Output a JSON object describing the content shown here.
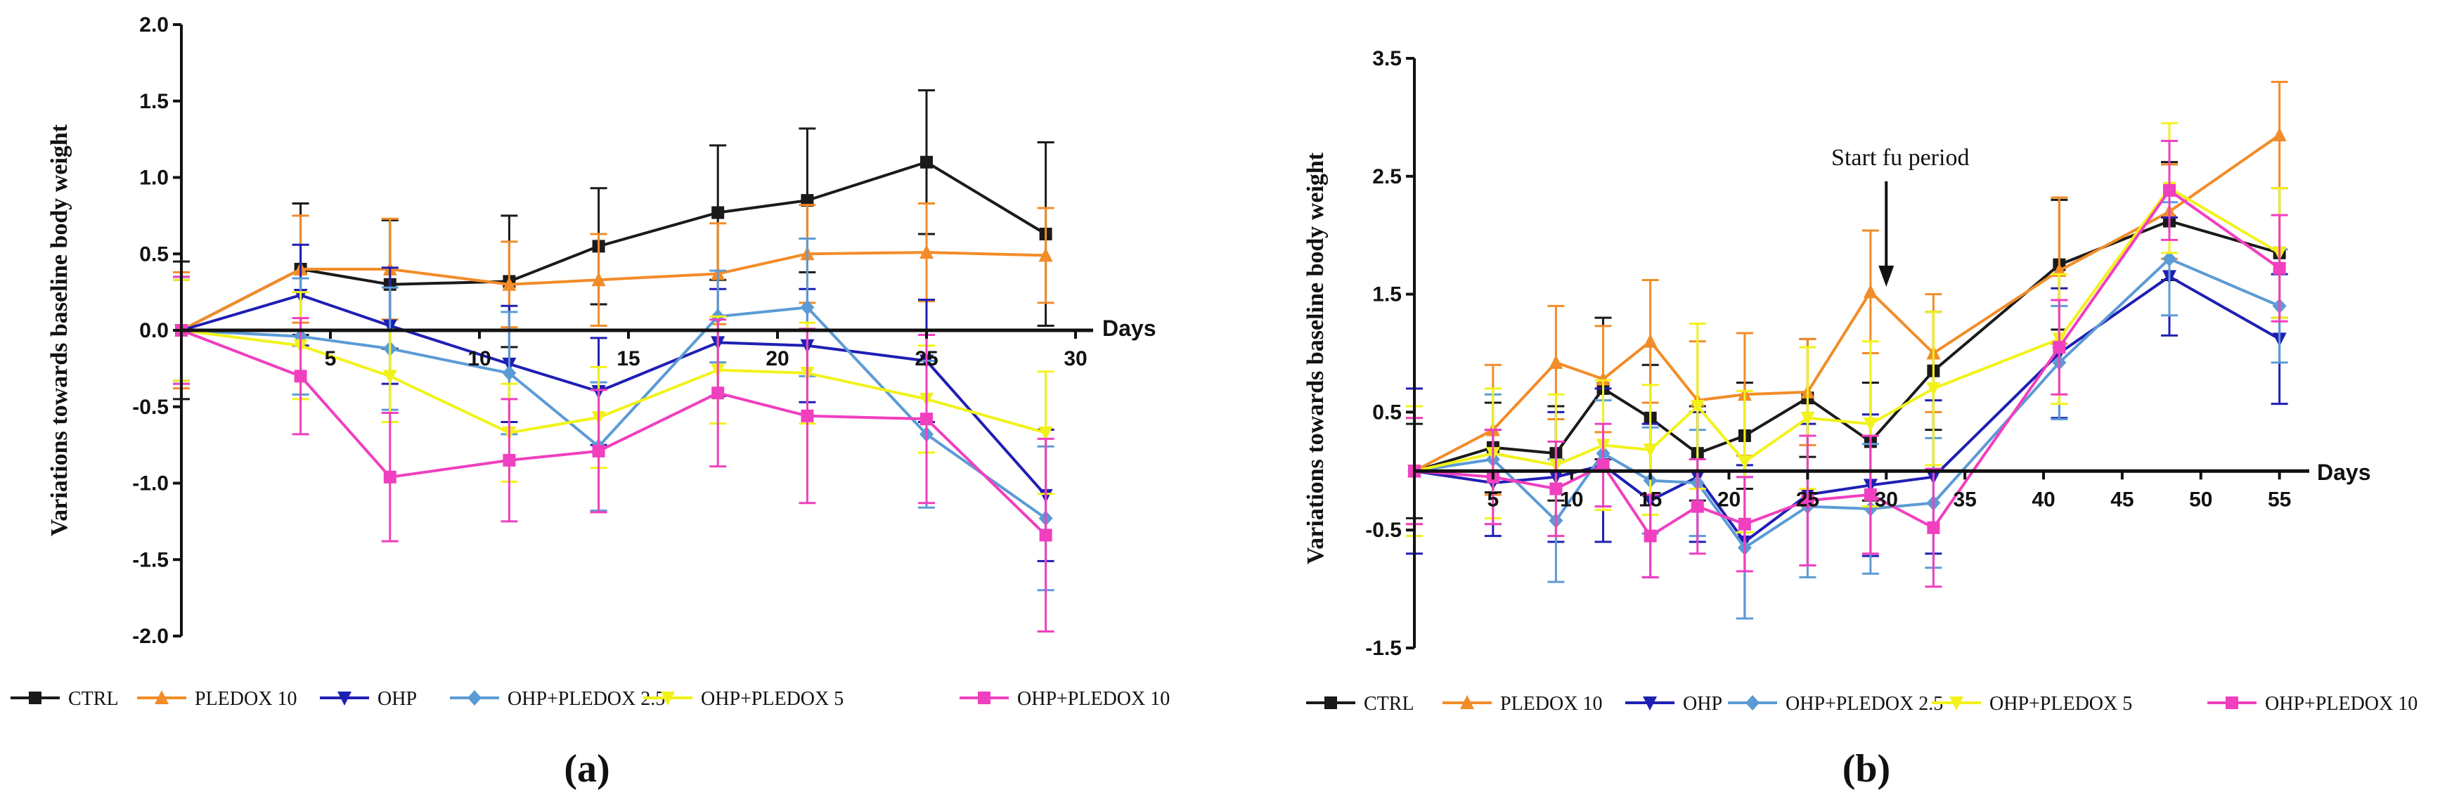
{
  "chart_data": [
    {
      "type": "line",
      "panel_label": "(a)",
      "ylabel": "Variations towards baseline body weight",
      "xlabel": "Days",
      "ylim": [
        -2.0,
        2.0
      ],
      "xlim": [
        0,
        30
      ],
      "yticks": [
        "2.0",
        "1.5",
        "1.0",
        "0.5",
        "0.0",
        "-0.5",
        "-1.0",
        "-1.5",
        "-2.0"
      ],
      "ytick_values": [
        2.0,
        1.5,
        1.0,
        0.5,
        0.0,
        -0.5,
        -1.0,
        -1.5,
        -2.0
      ],
      "xticks": [
        "5",
        "10",
        "15",
        "20",
        "25",
        "30"
      ],
      "xtick_values": [
        5,
        10,
        15,
        20,
        25,
        30
      ],
      "series": [
        {
          "name": "CTRL",
          "color": "#1a1a1a",
          "marker": "square",
          "x": [
            0,
            4,
            7,
            11,
            14,
            18,
            21,
            25,
            29
          ],
          "y": [
            0,
            0.4,
            0.3,
            0.32,
            0.55,
            0.77,
            0.85,
            1.1,
            0.63
          ],
          "err": [
            0.45,
            0.43,
            0.42,
            0.43,
            0.38,
            0.44,
            0.47,
            0.47,
            0.6
          ]
        },
        {
          "name": "PLEDOX 10",
          "color": "#f28c28",
          "marker": "triangle-up",
          "x": [
            0,
            4,
            7,
            11,
            14,
            18,
            21,
            25,
            29
          ],
          "y": [
            0,
            0.4,
            0.4,
            0.3,
            0.33,
            0.37,
            0.5,
            0.51,
            0.49
          ],
          "err": [
            0.38,
            0.35,
            0.33,
            0.28,
            0.3,
            0.33,
            0.32,
            0.32,
            0.31
          ]
        },
        {
          "name": "OHP",
          "color": "#1f1fb4",
          "marker": "triangle-down",
          "x": [
            0,
            4,
            7,
            11,
            14,
            18,
            21,
            25,
            29
          ],
          "y": [
            0,
            0.23,
            0.03,
            -0.22,
            -0.4,
            -0.08,
            -0.1,
            -0.2,
            -1.08
          ],
          "err": [
            0.33,
            0.33,
            0.38,
            0.38,
            0.35,
            0.35,
            0.37,
            0.4,
            0.43
          ]
        },
        {
          "name": "OHP+PLEDOX 2.5",
          "color": "#5b9bd5",
          "marker": "diamond",
          "x": [
            0,
            4,
            7,
            11,
            14,
            18,
            21,
            25,
            29
          ],
          "y": [
            0,
            -0.04,
            -0.12,
            -0.28,
            -0.76,
            0.09,
            0.15,
            -0.68,
            -1.23
          ],
          "err": [
            0.35,
            0.38,
            0.4,
            0.4,
            0.42,
            0.3,
            0.45,
            0.48,
            0.47
          ]
        },
        {
          "name": "OHP+PLEDOX 5",
          "color": "#f2f21a",
          "marker": "triangle-down",
          "x": [
            0,
            4,
            7,
            11,
            14,
            18,
            21,
            25,
            29
          ],
          "y": [
            0,
            -0.1,
            -0.3,
            -0.67,
            -0.57,
            -0.26,
            -0.28,
            -0.45,
            -0.67
          ],
          "err": [
            0.33,
            0.35,
            0.3,
            0.32,
            0.33,
            0.35,
            0.33,
            0.35,
            0.4
          ]
        },
        {
          "name": "OHP+PLEDOX 10",
          "color": "#f03fbf",
          "marker": "square",
          "x": [
            0,
            4,
            7,
            11,
            14,
            18,
            21,
            25,
            29
          ],
          "y": [
            0,
            -0.3,
            -0.96,
            -0.85,
            -0.79,
            -0.41,
            -0.56,
            -0.58,
            -1.34
          ],
          "err": [
            0.35,
            0.38,
            0.42,
            0.4,
            0.4,
            0.48,
            0.57,
            0.55,
            0.63
          ]
        }
      ]
    },
    {
      "type": "line",
      "panel_label": "(b)",
      "ylabel": "Variations towards baseline body weight",
      "xlabel": "Days",
      "ylim": [
        -1.5,
        3.5
      ],
      "xlim": [
        0,
        56
      ],
      "yticks": [
        "3.5",
        "2.5",
        "1.5",
        "0.5",
        "-0.5",
        "-1.5"
      ],
      "ytick_values": [
        3.5,
        2.5,
        1.5,
        0.5,
        -0.5,
        -1.5
      ],
      "xticks": [
        "5",
        "10",
        "15",
        "20",
        "25",
        "30",
        "35",
        "40",
        "45",
        "50",
        "55"
      ],
      "xtick_values": [
        5,
        10,
        15,
        20,
        25,
        30,
        35,
        40,
        45,
        50,
        55
      ],
      "annotation": {
        "text": "Start fu period",
        "x": 30,
        "y": 1.5
      },
      "series": [
        {
          "name": "CTRL",
          "color": "#1a1a1a",
          "marker": "square",
          "x": [
            0,
            5,
            9,
            12,
            15,
            18,
            21,
            25,
            29,
            33,
            41,
            48,
            55
          ],
          "y": [
            0,
            0.2,
            0.15,
            0.7,
            0.45,
            0.15,
            0.3,
            0.62,
            0.25,
            0.85,
            1.75,
            2.12,
            1.85
          ],
          "err": [
            0.4,
            0.38,
            0.4,
            0.6,
            0.45,
            0.4,
            0.45,
            0.5,
            0.5,
            0.5,
            0.55,
            0.5,
            0.55
          ]
        },
        {
          "name": "PLEDOX 10",
          "color": "#f28c28",
          "marker": "triangle-up",
          "x": [
            0,
            5,
            9,
            12,
            15,
            18,
            21,
            25,
            29,
            33,
            41,
            48,
            55
          ],
          "y": [
            0,
            0.35,
            0.92,
            0.78,
            1.1,
            0.6,
            0.65,
            0.67,
            1.52,
            1.0,
            1.7,
            2.2,
            2.85
          ],
          "err": [
            0.45,
            0.55,
            0.48,
            0.45,
            0.52,
            0.5,
            0.52,
            0.45,
            0.52,
            0.5,
            0.62,
            0.4,
            0.45
          ]
        },
        {
          "name": "OHP",
          "color": "#1f1fb4",
          "marker": "triangle-down",
          "x": [
            0,
            5,
            9,
            12,
            15,
            18,
            21,
            25,
            29,
            33,
            41,
            48,
            55
          ],
          "y": [
            0,
            -0.1,
            -0.05,
            0.05,
            -0.25,
            -0.05,
            -0.6,
            -0.2,
            -0.12,
            -0.05,
            1.0,
            1.65,
            1.12
          ],
          "err": [
            0.7,
            0.45,
            0.55,
            0.65,
            0.65,
            0.55,
            0.65,
            0.6,
            0.6,
            0.65,
            0.55,
            0.5,
            0.55
          ]
        },
        {
          "name": "OHP+PLEDOX 2.5",
          "color": "#5b9bd5",
          "marker": "diamond",
          "x": [
            0,
            5,
            9,
            12,
            15,
            18,
            21,
            25,
            29,
            33,
            41,
            48,
            55
          ],
          "y": [
            0,
            0.1,
            -0.42,
            0.15,
            -0.08,
            -0.1,
            -0.65,
            -0.3,
            -0.32,
            -0.27,
            0.92,
            1.8,
            1.4
          ],
          "err": [
            0.55,
            0.55,
            0.52,
            0.45,
            0.45,
            0.45,
            0.6,
            0.6,
            0.55,
            0.55,
            0.48,
            0.48,
            0.48
          ]
        },
        {
          "name": "OHP+PLEDOX 5",
          "color": "#f2f21a",
          "marker": "triangle-down",
          "x": [
            0,
            5,
            9,
            12,
            15,
            18,
            21,
            25,
            29,
            33,
            41,
            48,
            55
          ],
          "y": [
            0,
            0.15,
            0.05,
            0.22,
            0.18,
            0.55,
            0.08,
            0.45,
            0.4,
            0.7,
            1.12,
            2.4,
            1.85
          ],
          "err": [
            0.55,
            0.55,
            0.6,
            0.55,
            0.55,
            0.7,
            0.6,
            0.6,
            0.7,
            0.65,
            0.55,
            0.55,
            0.55
          ]
        },
        {
          "name": "OHP+PLEDOX 10",
          "color": "#f03fbf",
          "marker": "square",
          "x": [
            0,
            5,
            9,
            12,
            15,
            18,
            21,
            25,
            29,
            33,
            41,
            48,
            55
          ],
          "y": [
            0,
            -0.05,
            -0.15,
            0.05,
            -0.55,
            -0.3,
            -0.45,
            -0.25,
            -0.2,
            -0.48,
            1.05,
            2.38,
            1.72
          ],
          "err": [
            0.45,
            0.4,
            0.4,
            0.35,
            0.35,
            0.4,
            0.4,
            0.55,
            0.5,
            0.5,
            0.4,
            0.42,
            0.45
          ]
        }
      ]
    }
  ]
}
